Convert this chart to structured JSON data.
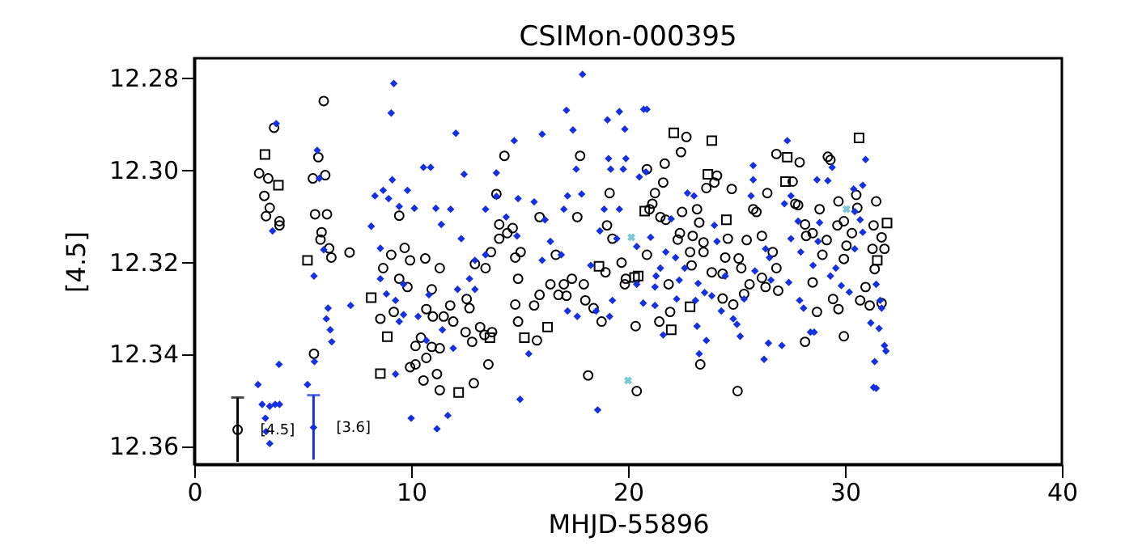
{
  "chart_data": {
    "type": "scatter",
    "title": "CSIMon-000395",
    "xlabel": "MHJD-55896",
    "ylabel": "[4.5]",
    "xlim": [
      0,
      40
    ],
    "xticks": [
      0,
      10,
      20,
      30,
      40
    ],
    "ylim": [
      12.364,
      12.2758
    ],
    "yticks": [
      12.28,
      {
        "value": 12.3,
        "label": "12.30"
      },
      12.32,
      12.34,
      12.36
    ],
    "grid": false,
    "annotations": [
      "[4.5]",
      "[3.6]"
    ],
    "series": [
      {
        "color": "#000000",
        "marker": "circle",
        "x": [
          3.68,
          2.99,
          3.41,
          3.23,
          3.48,
          3.31,
          3.93,
          3.93,
          5.97,
          5.72,
          5.47,
          6.04,
          5.57,
          6.12,
          5.87,
          5.82,
          6.22,
          6.32,
          7.16,
          5.52,
          9.45,
          8.71,
          9.08,
          9.7,
          9.95,
          9.83,
          9.45,
          8.58,
          9.2,
          10.65,
          11.32,
          10.95,
          10.7,
          11.0,
          11.5,
          10.45,
          10.2,
          10.7,
          10.95,
          11.32,
          9.95,
          10.2,
          10.57,
          11.19,
          11.32,
          11.94,
          11.8,
          12.56,
          12.69,
          12.51,
          12.81,
          12.89,
          13.18,
          13.38,
          13.73,
          13.56,
          12.94,
          13.43,
          13.68,
          14.3,
          13.93,
          14.06,
          14.43,
          14.68,
          14.8,
          14.06,
          15.05,
          14.93,
          14.8,
          14.93,
          15.67,
          15.92,
          15.8,
          15.92,
          16.67,
          16.42,
          17.04,
          16.79,
          17.16,
          17.41,
          17.66,
          17.96,
          18.03,
          18.41,
          18.78,
          18.16,
          17.79,
          19.15,
          19.03,
          19.28,
          19.7,
          19.9,
          20.35,
          20.4,
          19.85,
          18.96,
          20.87,
          21.69,
          22.44,
          22.69,
          21.62,
          21.24,
          21.12,
          20.99,
          21.49,
          21.74,
          22.49,
          23.18,
          23.28,
          22.39,
          22.29,
          22.98,
          23.48,
          23.48,
          22.86,
          22.93,
          21.87,
          21.94,
          21.44,
          20.87,
          23.86,
          24.36,
          24.48,
          24.6,
          24.78,
          23.61,
          23.98,
          24.1,
          24.36,
          24.85,
          25.1,
          25.22,
          25.35,
          25.47,
          25.77,
          25.92,
          26.42,
          26.84,
          27.91,
          27.59,
          27.71,
          27.84,
          26.67,
          26.84,
          26.17,
          26.34,
          26.92,
          25.6,
          26.17,
          28.16,
          28.21,
          28.51,
          29.16,
          28.96,
          29.21,
          29.33,
          28.83,
          29.7,
          29.65,
          29.95,
          30.32,
          30.07,
          29.95,
          29.7,
          29.45,
          28.51,
          28.71,
          28.16,
          29.95,
          30.7,
          30.95,
          31.14,
          31.37,
          31.27,
          31.69,
          31.82,
          31.32,
          31.69,
          31.44,
          30.57,
          30.52,
          23.33,
          25.05
        ],
        "values": [
          12.2909,
          12.3008,
          12.3019,
          12.3057,
          12.3083,
          12.3101,
          12.3112,
          12.3121,
          12.2851,
          12.2973,
          12.3019,
          12.3012,
          12.3097,
          12.3097,
          12.3136,
          12.3152,
          12.3171,
          12.3191,
          12.318,
          12.34,
          12.31,
          12.3214,
          12.3185,
          12.317,
          12.3197,
          12.3255,
          12.3237,
          12.3324,
          12.3309,
          12.3193,
          12.3214,
          12.326,
          12.3303,
          12.3319,
          12.3319,
          12.3365,
          12.3383,
          12.3409,
          12.3385,
          12.3388,
          12.3429,
          12.3423,
          12.3458,
          12.3444,
          12.3479,
          12.333,
          12.3295,
          12.3281,
          12.3301,
          12.3353,
          12.3374,
          12.3464,
          12.3342,
          12.3359,
          12.3353,
          12.3423,
          12.3205,
          12.3214,
          12.3179,
          12.297,
          12.3053,
          12.3119,
          12.3138,
          12.3127,
          12.3191,
          12.315,
          12.3179,
          12.3237,
          12.3293,
          12.333,
          12.3295,
          12.3272,
          12.3371,
          12.3103,
          12.3185,
          12.3249,
          12.3249,
          12.3272,
          12.3274,
          12.3237,
          12.3103,
          12.3249,
          12.3284,
          12.3301,
          12.333,
          12.3447,
          12.297,
          12.3051,
          12.3121,
          12.315,
          12.3202,
          12.3237,
          12.334,
          12.3481,
          12.3249,
          12.3223,
          12.2999,
          12.2987,
          12.2962,
          12.2929,
          12.3028,
          12.3051,
          12.3074,
          12.3086,
          12.3103,
          12.3109,
          12.3092,
          12.3086,
          12.3115,
          12.3138,
          12.3152,
          12.3144,
          12.3158,
          12.3179,
          12.3179,
          12.3208,
          12.3249,
          12.3309,
          12.333,
          12.3185,
          12.3223,
          12.3226,
          12.3191,
          12.315,
          12.3042,
          12.304,
          12.3028,
          12.3013,
          12.328,
          12.3293,
          12.3193,
          12.3214,
          12.327,
          12.3153,
          12.3086,
          12.3092,
          12.3051,
          12.2966,
          12.2984,
          12.3026,
          12.3074,
          12.3077,
          12.3179,
          12.3214,
          12.3235,
          12.3255,
          12.3263,
          12.3249,
          12.3144,
          12.3119,
          12.3144,
          12.3138,
          12.3153,
          12.3185,
          12.2972,
          12.2979,
          12.3086,
          12.3069,
          12.3121,
          12.3112,
          12.3138,
          12.3165,
          12.3194,
          12.3303,
          12.3281,
          12.3245,
          12.3309,
          12.3374,
          12.3362,
          12.3284,
          12.3255,
          12.3295,
          12.3216,
          12.3172,
          12.3147,
          12.3172,
          12.3121,
          12.329,
          12.3069,
          12.3083,
          12.3055,
          12.3423,
          12.3481
        ]
      },
      {
        "color": "#000000",
        "marker": "square",
        "x": [
          3.26,
          3.88,
          5.22,
          8.9,
          8.58,
          12.19,
          8.16,
          13.63,
          15.22,
          16.29,
          18.66,
          20.47,
          20.77,
          22.11,
          23.86,
          23.68,
          27.26,
          30.65,
          27.34,
          31.94,
          31.49,
          22.86,
          21.99,
          20.3,
          24.53
        ],
        "values": [
          12.2967,
          12.3034,
          12.3197,
          12.3363,
          12.3443,
          12.3484,
          12.3278,
          12.3365,
          12.3365,
          12.3342,
          12.321,
          12.3231,
          12.309,
          12.292,
          12.2937,
          12.301,
          12.3026,
          12.2931,
          12.2973,
          12.3116,
          12.3197,
          12.3298,
          12.3348,
          12.3234,
          12.3109
        ]
      },
      {
        "color": "#1530e0",
        "marker": "diamond",
        "x": [
          3.78,
          3.61,
          2.94,
          3.13,
          3.48,
          3.73,
          3.93,
          3.91,
          3.28,
          3.31,
          3.48,
          5.67,
          5.77,
          5.97,
          5.52,
          6.17,
          6.09,
          6.27,
          6.34,
          5.54,
          5.22,
          7.21,
          9.2,
          9.08,
          8.16,
          8.33,
          8.71,
          8.96,
          9.13,
          9.45,
          9.83,
          10.15,
          8.58,
          8.58,
          8.86,
          9.28,
          9.65,
          9.65,
          9.45,
          9.28,
          10.0,
          11.19,
          11.69,
          10.57,
          10.9,
          11.14,
          11.39,
          11.82,
          12.06,
          12.44,
          12.31,
          12.94,
          12.94,
          10.7,
          10.82,
          10.32,
          11.44,
          11.94,
          12.14,
          12.69,
          13.43,
          13.43,
          13.93,
          13.93,
          14.75,
          14.93,
          14.38,
          14.88,
          15.42,
          15.02,
          16.04,
          15.67,
          16.17,
          16.04,
          16.42,
          17.16,
          17.46,
          17.04,
          17.21,
          17.86,
          17.61,
          17.9,
          16.92,
          17.21,
          17.66,
          18.28,
          18.6,
          19.05,
          19.1,
          19.2,
          19.6,
          19.85,
          19.9,
          19.78,
          19.48,
          19.28,
          19.15,
          18.53,
          18.7,
          18.9,
          20.4,
          20.52,
          20.4,
          20.7,
          20.72,
          19.6,
          20.87,
          22.74,
          23.04,
          21.99,
          21.04,
          21.74,
          22.19,
          21.49,
          21.29,
          21.24,
          21.24,
          21.62,
          22.24,
          22.36,
          22.61,
          23.23,
          23.11,
          23.53,
          23.86,
          23.18,
          23.61,
          23.28,
          23.98,
          24.1,
          24.48,
          24.3,
          24.85,
          25.02,
          25.17,
          25.35,
          25.85,
          25.77,
          25.77,
          25.67,
          26.34,
          26.52,
          26.59,
          26.27,
          26.47,
          27.09,
          27.21,
          27.34,
          27.51,
          27.84,
          27.96,
          27.51,
          27.41,
          27.91,
          28.09,
          28.41,
          28.58,
          28.71,
          29.21,
          29.41,
          28.83,
          28.76,
          28.53,
          29.33,
          29.58,
          29.83,
          30.2,
          30.4,
          30.45,
          30.7,
          30.82,
          30.45,
          30.95,
          30.82,
          31.44,
          31.62,
          31.69,
          31.19,
          31.57,
          31.82,
          31.89,
          31.37,
          31.32,
          31.44,
          20.82
        ],
        "values": [
          12.29,
          12.3133,
          12.3467,
          12.351,
          12.3514,
          12.351,
          12.351,
          12.3423,
          12.354,
          12.3569,
          12.3595,
          12.2958,
          12.3019,
          12.3174,
          12.3231,
          12.3301,
          12.3324,
          12.3348,
          12.3374,
          12.3417,
          12.3467,
          12.3295,
          12.2813,
          12.2877,
          12.3123,
          12.3057,
          12.3045,
          12.3063,
          12.3022,
          12.308,
          12.3045,
          12.3084,
          12.3171,
          12.3237,
          12.327,
          12.3284,
          12.3249,
          12.3315,
          12.333,
          12.3444,
          12.354,
          12.3563,
          12.3534,
          12.2995,
          12.2995,
          12.3084,
          12.3119,
          12.3086,
          12.2921,
          12.301,
          12.315,
          12.3197,
          12.326,
          12.3371,
          12.3272,
          12.3319,
          12.3348,
          12.3388,
          12.326,
          12.3237,
          12.3185,
          12.3086,
          12.3007,
          12.3058,
          12.2937,
          12.3063,
          12.3103,
          12.3144,
          12.34,
          12.3499,
          12.2923,
          12.307,
          12.3109,
          12.3197,
          12.3156,
          12.2871,
          12.2914,
          12.3086,
          12.3057,
          12.3053,
          12.2999,
          12.2793,
          12.3185,
          12.3307,
          12.3319,
          12.3208,
          12.3522,
          12.2892,
          12.2976,
          12.2999,
          12.2874,
          12.2912,
          12.2976,
          12.2999,
          12.315,
          12.3284,
          12.3319,
          12.3307,
          12.3133,
          12.3086,
          12.3167,
          12.3016,
          12.3249,
          12.329,
          12.2869,
          12.3086,
          12.2869,
          12.3051,
          12.3057,
          12.3107,
          12.3147,
          12.3179,
          12.3191,
          12.3214,
          12.3231,
          12.3255,
          12.3295,
          12.3359,
          12.3281,
          12.324,
          12.3214,
          12.3247,
          12.3284,
          12.3267,
          12.3274,
          12.334,
          12.3371,
          12.34,
          12.3121,
          12.3156,
          12.3231,
          12.3307,
          12.3324,
          12.3336,
          12.3362,
          12.3281,
          12.322,
          12.3022,
          12.2991,
          12.3057,
          12.3172,
          12.3191,
          12.324,
          12.3412,
          12.3377,
          12.3382,
          12.3074,
          12.2937,
          12.3057,
          12.3112,
          12.3179,
          12.315,
          12.3245,
          12.3284,
          12.3301,
          12.3353,
          12.3353,
          12.3022,
          12.3024,
          12.2995,
          12.3115,
          12.3156,
          12.3208,
          12.3231,
          12.3214,
          12.3252,
          12.3266,
          12.3042,
          12.3091,
          12.3109,
          12.3136,
          12.3172,
          12.2978,
          12.3034,
          12.3249,
          12.3284,
          12.3301,
          12.3333,
          12.3345,
          12.3382,
          12.3394,
          12.3417,
          12.3473,
          12.3475,
          12.3005
        ]
      },
      {
        "color": "#40b0c0",
        "marker": "cross",
        "x": [
          20.0,
          20.15,
          30.07
        ],
        "values": [
          12.3458,
          12.3147,
          12.3086
        ]
      },
      {
        "color": "#000000",
        "marker": "circle",
        "x": [
          2.0
        ],
        "values": [
          12.3565
        ],
        "errors": [
          0.007
        ]
      },
      {
        "color": "#1530e0",
        "marker": "diamond",
        "x": [
          5.5
        ],
        "values": [
          12.356
        ],
        "errors": [
          0.007
        ]
      }
    ]
  }
}
